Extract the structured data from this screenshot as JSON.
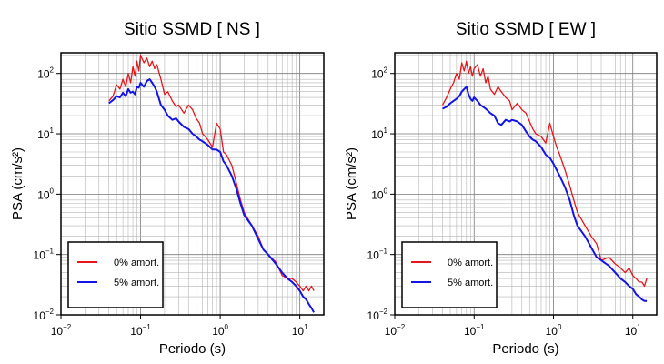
{
  "chart_data": [
    {
      "type": "line",
      "title": "Sitio SSMD [ NS ]",
      "xlabel": "Periodo (s)",
      "ylabel": "PSA (cm/s²)",
      "xscale": "log",
      "yscale": "log",
      "xlim": [
        0.01,
        20
      ],
      "ylim": [
        0.01,
        220
      ],
      "xticks": [
        {
          "base": "10",
          "exp": "−2"
        },
        {
          "base": "10",
          "exp": "−1"
        },
        {
          "base": "10",
          "exp": "0"
        },
        {
          "base": "10",
          "exp": "1"
        }
      ],
      "yticks": [
        {
          "base": "10",
          "exp": "−2"
        },
        {
          "base": "10",
          "exp": "−1"
        },
        {
          "base": "10",
          "exp": "0"
        },
        {
          "base": "10",
          "exp": "1"
        },
        {
          "base": "10",
          "exp": "2"
        }
      ],
      "grid": true,
      "legend_position": "bottom-left",
      "series": [
        {
          "name": "0% amort.",
          "color": "#e8161c",
          "x": [
            0.04,
            0.045,
            0.05,
            0.055,
            0.06,
            0.065,
            0.07,
            0.075,
            0.08,
            0.085,
            0.09,
            0.095,
            0.1,
            0.11,
            0.12,
            0.13,
            0.14,
            0.15,
            0.16,
            0.18,
            0.2,
            0.22,
            0.25,
            0.28,
            0.3,
            0.35,
            0.4,
            0.45,
            0.5,
            0.55,
            0.6,
            0.7,
            0.8,
            0.9,
            1.0,
            1.1,
            1.2,
            1.4,
            1.6,
            1.8,
            2.0,
            2.5,
            3.0,
            3.5,
            4.0,
            5.0,
            6.0,
            7.0,
            8.0,
            9.0,
            10.0,
            11.0,
            12.0,
            13.0,
            14.0,
            15.0
          ],
          "y": [
            35,
            42,
            65,
            55,
            80,
            60,
            100,
            70,
            130,
            90,
            160,
            110,
            200,
            150,
            180,
            130,
            160,
            120,
            140,
            80,
            45,
            50,
            35,
            28,
            30,
            22,
            30,
            25,
            18,
            15,
            10,
            8,
            6,
            15,
            12,
            5,
            4.5,
            3.0,
            1.5,
            0.8,
            0.5,
            0.3,
            0.2,
            0.12,
            0.1,
            0.075,
            0.045,
            0.04,
            0.04,
            0.035,
            0.03,
            0.025,
            0.03,
            0.025,
            0.03,
            0.025
          ]
        },
        {
          "name": "5% amort.",
          "color": "#1414e6",
          "x": [
            0.04,
            0.045,
            0.05,
            0.055,
            0.06,
            0.065,
            0.07,
            0.075,
            0.08,
            0.085,
            0.09,
            0.095,
            0.1,
            0.11,
            0.12,
            0.13,
            0.14,
            0.15,
            0.16,
            0.18,
            0.2,
            0.22,
            0.25,
            0.28,
            0.3,
            0.35,
            0.4,
            0.45,
            0.5,
            0.55,
            0.6,
            0.7,
            0.8,
            0.9,
            1.0,
            1.1,
            1.2,
            1.4,
            1.6,
            1.8,
            2.0,
            2.5,
            3.0,
            3.5,
            4.0,
            5.0,
            6.0,
            7.0,
            8.0,
            9.0,
            10.0,
            11.0,
            12.0,
            13.0,
            14.0,
            15.0
          ],
          "y": [
            32,
            36,
            42,
            40,
            48,
            42,
            55,
            48,
            50,
            45,
            60,
            58,
            70,
            60,
            75,
            80,
            70,
            60,
            50,
            30,
            25,
            20,
            17,
            18,
            16,
            13,
            12,
            10,
            9,
            8,
            7.5,
            6.5,
            5.5,
            5.5,
            5.0,
            3.5,
            3.0,
            2.0,
            1.2,
            0.7,
            0.45,
            0.3,
            0.18,
            0.12,
            0.1,
            0.07,
            0.05,
            0.04,
            0.035,
            0.03,
            0.025,
            0.02,
            0.018,
            0.015,
            0.013,
            0.011
          ]
        }
      ]
    },
    {
      "type": "line",
      "title": "Sitio SSMD [ EW ]",
      "xlabel": "Periodo (s)",
      "ylabel": "PSA (cm/s²)",
      "xscale": "log",
      "yscale": "log",
      "xlim": [
        0.01,
        20
      ],
      "ylim": [
        0.01,
        220
      ],
      "xticks": [
        {
          "base": "10",
          "exp": "−2"
        },
        {
          "base": "10",
          "exp": "−1"
        },
        {
          "base": "10",
          "exp": "0"
        },
        {
          "base": "10",
          "exp": "1"
        }
      ],
      "yticks": [
        {
          "base": "10",
          "exp": "−2"
        },
        {
          "base": "10",
          "exp": "−1"
        },
        {
          "base": "10",
          "exp": "0"
        },
        {
          "base": "10",
          "exp": "1"
        },
        {
          "base": "10",
          "exp": "2"
        }
      ],
      "grid": true,
      "legend_position": "bottom-left",
      "series": [
        {
          "name": "0% amort.",
          "color": "#e8161c",
          "x": [
            0.04,
            0.045,
            0.05,
            0.055,
            0.06,
            0.065,
            0.07,
            0.075,
            0.08,
            0.085,
            0.09,
            0.095,
            0.1,
            0.11,
            0.12,
            0.13,
            0.14,
            0.15,
            0.16,
            0.18,
            0.2,
            0.22,
            0.25,
            0.28,
            0.3,
            0.35,
            0.4,
            0.45,
            0.5,
            0.55,
            0.6,
            0.7,
            0.8,
            0.9,
            1.0,
            1.1,
            1.2,
            1.4,
            1.6,
            1.8,
            2.0,
            2.5,
            3.0,
            3.5,
            4.0,
            5.0,
            6.0,
            7.0,
            8.0,
            9.0,
            10.0,
            11.0,
            12.0,
            13.0,
            14.0,
            15.0
          ],
          "y": [
            30,
            40,
            55,
            70,
            100,
            80,
            150,
            110,
            160,
            100,
            130,
            90,
            120,
            140,
            90,
            120,
            70,
            90,
            55,
            45,
            60,
            50,
            40,
            35,
            25,
            32,
            25,
            22,
            16,
            12,
            10,
            9,
            7,
            15,
            9,
            6,
            4.5,
            2.5,
            1.4,
            0.8,
            0.5,
            0.3,
            0.2,
            0.15,
            0.08,
            0.09,
            0.07,
            0.06,
            0.05,
            0.06,
            0.045,
            0.04,
            0.035,
            0.035,
            0.03,
            0.04
          ]
        },
        {
          "name": "5% amort.",
          "color": "#1414e6",
          "x": [
            0.04,
            0.045,
            0.05,
            0.055,
            0.06,
            0.065,
            0.07,
            0.075,
            0.08,
            0.085,
            0.09,
            0.095,
            0.1,
            0.11,
            0.12,
            0.13,
            0.14,
            0.15,
            0.16,
            0.18,
            0.2,
            0.22,
            0.25,
            0.28,
            0.3,
            0.35,
            0.4,
            0.45,
            0.5,
            0.55,
            0.6,
            0.7,
            0.8,
            0.9,
            1.0,
            1.1,
            1.2,
            1.4,
            1.6,
            1.8,
            2.0,
            2.5,
            3.0,
            3.5,
            4.0,
            5.0,
            6.0,
            7.0,
            8.0,
            9.0,
            10.0,
            11.0,
            12.0,
            13.0,
            14.0,
            15.0
          ],
          "y": [
            26,
            28,
            32,
            35,
            38,
            42,
            50,
            55,
            60,
            45,
            38,
            35,
            40,
            35,
            30,
            28,
            26,
            24,
            22,
            20,
            15,
            14,
            17,
            16,
            17,
            16,
            14,
            11,
            9,
            8,
            7.5,
            6.0,
            4.5,
            4.0,
            3.2,
            2.5,
            2.0,
            1.3,
            0.8,
            0.45,
            0.3,
            0.2,
            0.13,
            0.09,
            0.08,
            0.065,
            0.05,
            0.04,
            0.035,
            0.03,
            0.027,
            0.022,
            0.02,
            0.018,
            0.017,
            0.017
          ]
        }
      ]
    }
  ]
}
